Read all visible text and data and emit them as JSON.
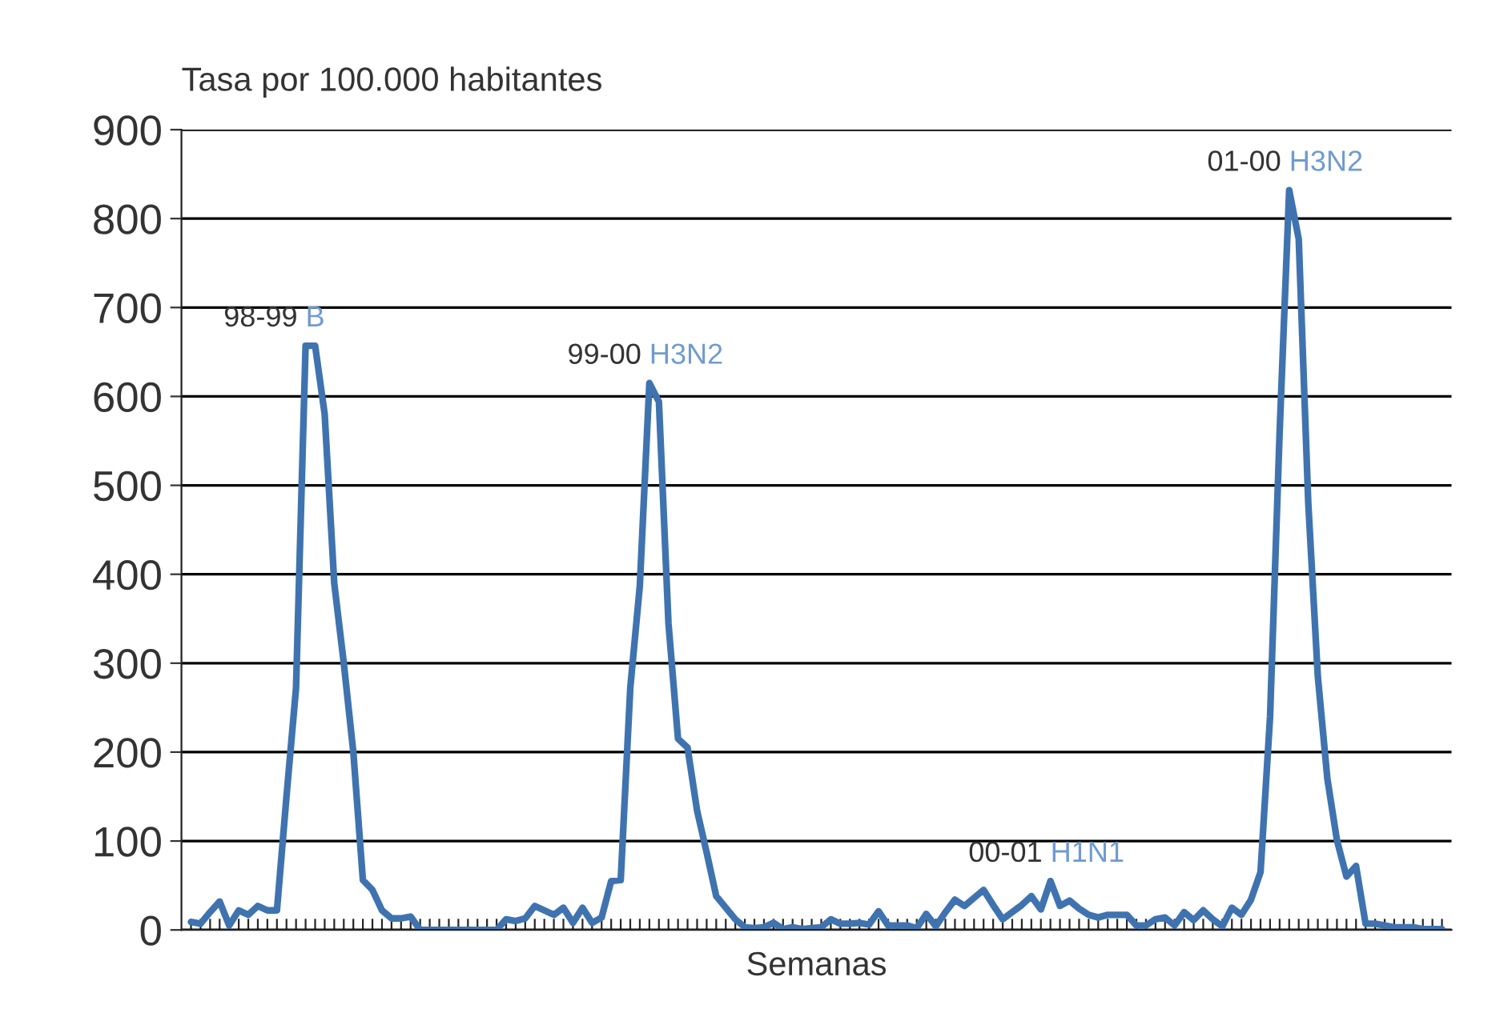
{
  "chart_data": {
    "type": "line",
    "ylabel": "Tasa por 100.000 habitantes",
    "xlabel": "Semanas",
    "categories": [
      null,
      null,
      null,
      null,
      null,
      null,
      null,
      null,
      null,
      null,
      null,
      null,
      null,
      null,
      null,
      null,
      null,
      null,
      null,
      null,
      null,
      null,
      null,
      null,
      null,
      null,
      null,
      null,
      null,
      null,
      null,
      null,
      null,
      null,
      null,
      null,
      null,
      null,
      null,
      null,
      null,
      null,
      null,
      null,
      null,
      null,
      null,
      null,
      null,
      null,
      null,
      null,
      null,
      null,
      null,
      null,
      null,
      null,
      null,
      null,
      null,
      null,
      null,
      null,
      null,
      null,
      null,
      null,
      null,
      null,
      null,
      null,
      null,
      null,
      null,
      null,
      null,
      null,
      null,
      null,
      null,
      null,
      null,
      null,
      null,
      null,
      null,
      null,
      null,
      null,
      null,
      null,
      null,
      null,
      null,
      null,
      null,
      null,
      null,
      null,
      null,
      null,
      null,
      null,
      null,
      null,
      null,
      null,
      null,
      null,
      null,
      null,
      null,
      null,
      null,
      null,
      null,
      null,
      null,
      null,
      null,
      null,
      null,
      null,
      null,
      null,
      null,
      null,
      null,
      null,
      null,
      null
    ],
    "series": [
      {
        "color": "#3f73b0",
        "values": [
          9,
          7,
          20,
          32,
          5,
          22,
          17,
          27,
          22,
          22,
          150,
          272,
          657,
          657,
          580,
          390,
          300,
          200,
          56,
          45,
          22,
          13,
          13,
          15,
          0,
          0,
          0,
          0,
          0,
          0,
          0,
          0,
          0,
          12,
          10,
          13,
          27,
          22,
          17,
          25,
          8,
          25,
          8,
          14,
          55,
          56,
          272,
          387,
          615,
          594,
          345,
          215,
          205,
          134,
          87,
          38,
          25,
          12,
          3,
          2,
          3,
          8,
          1,
          3,
          1,
          2,
          3,
          12,
          7,
          7,
          8,
          6,
          21,
          5,
          5,
          5,
          2,
          18,
          4,
          20,
          34,
          27,
          36,
          45,
          28,
          12,
          20,
          28,
          38,
          23,
          55,
          27,
          33,
          24,
          17,
          14,
          17,
          17,
          17,
          5,
          5,
          12,
          14,
          5,
          20,
          11,
          22,
          12,
          4,
          25,
          17,
          34,
          65,
          240,
          560,
          832,
          777,
          480,
          285,
          170,
          101,
          60,
          72,
          7,
          7,
          5,
          3,
          3,
          3,
          1,
          1,
          1
        ]
      }
    ],
    "annotations": [
      "98-99 B",
      "99-00 H3N2",
      "00-01 H1N1",
      "01-00 H3N2"
    ],
    "ylim": [
      0,
      900
    ],
    "yticks": [
      0,
      100,
      200,
      300,
      400,
      500,
      600,
      700,
      800,
      900
    ],
    "grid": "y",
    "marker": "none",
    "line_style": "solid",
    "legend": false
  }
}
